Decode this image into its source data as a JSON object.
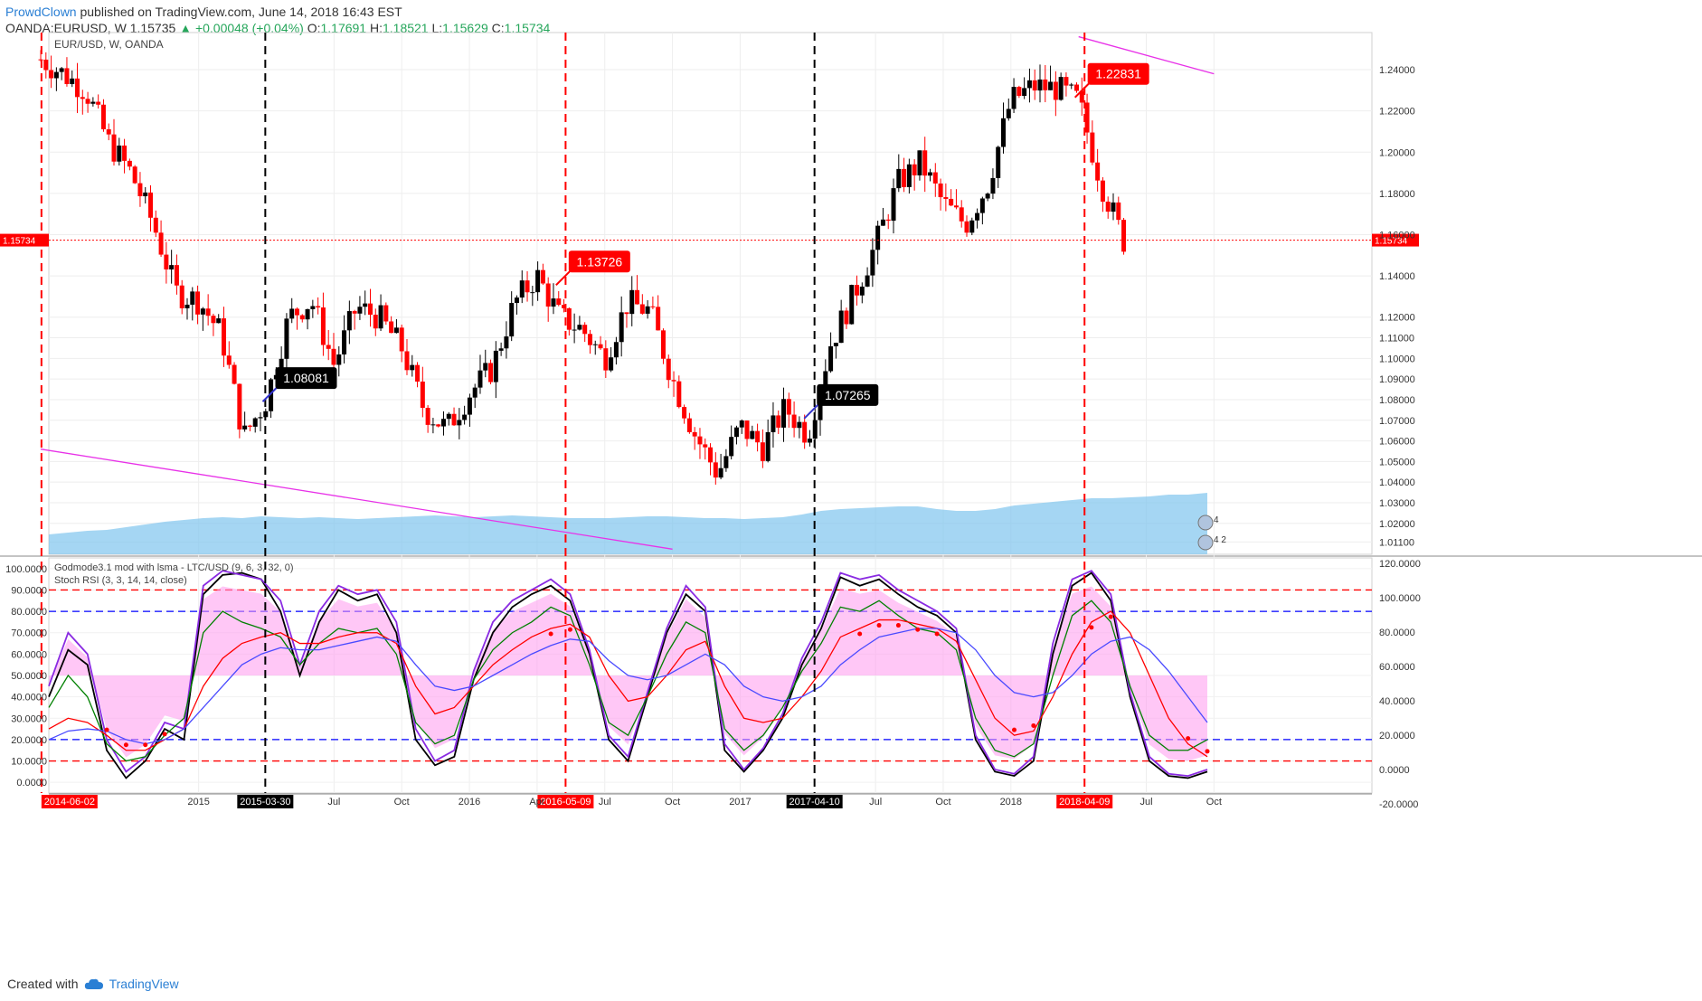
{
  "header": {
    "author": "ProwdClown",
    "published": "published on TradingView.com, June 14, 2018 16:43 EST",
    "symbol": "OANDA:EURUSD, W",
    "price": "1.15735",
    "change": "+0.00048 (+0.04%)",
    "o_label": "O:",
    "o": "1.17691",
    "h_label": "H:",
    "h": "1.18521",
    "l_label": "L:",
    "l": "1.15629",
    "c_label": "C:",
    "c": "1.15734"
  },
  "footer": {
    "created_with": "Created with",
    "brand": "TradingView"
  },
  "colors": {
    "bull": "#000000",
    "bear": "#ff0000",
    "volume_area": "#7fc4ee",
    "trendline": "#e832e8",
    "price_line": "#ff0000",
    "label_red": "#ff0000",
    "label_black": "#000000"
  },
  "chart_data": [
    {
      "type": "candlestick",
      "legend": "EUR/USD, W, OANDA",
      "pane": "price",
      "ylim": [
        1.005,
        1.258
      ],
      "y_ticks": [
        "1.24000",
        "1.22000",
        "1.20000",
        "1.18000",
        "1.16000",
        "1.14000",
        "1.12000",
        "1.11000",
        "1.10000",
        "1.09000",
        "1.08000",
        "1.07000",
        "1.06000",
        "1.05000",
        "1.04000",
        "1.03000",
        "1.02000",
        "1.01100"
      ],
      "last_price": "1.15734",
      "x_tick_labels": [
        {
          "label": "2015",
          "date": "2015-01"
        },
        {
          "label": "Jul",
          "date": "2015-07"
        },
        {
          "label": "Oct",
          "date": "2015-10"
        },
        {
          "label": "2016",
          "date": "2016-01"
        },
        {
          "label": "Apr",
          "date": "2016-04"
        },
        {
          "label": "Jul",
          "date": "2016-07"
        },
        {
          "label": "Oct",
          "date": "2016-10"
        },
        {
          "label": "2017",
          "date": "2017-01"
        },
        {
          "label": "Jul",
          "date": "2017-07"
        },
        {
          "label": "Oct",
          "date": "2017-10"
        },
        {
          "label": "2018",
          "date": "2018-01"
        },
        {
          "label": "Jul",
          "date": "2018-07"
        },
        {
          "label": "Oct",
          "date": "2018-10"
        }
      ],
      "vertical_markers": [
        {
          "date": "2014-06-02",
          "color": "#ff0000",
          "label": "2014-06-02"
        },
        {
          "date": "2015-03-30",
          "color": "#000000",
          "label": "2015-03-30"
        },
        {
          "date": "2016-05-09",
          "color": "#ff0000",
          "label": "2016-05-09"
        },
        {
          "date": "2017-04-10",
          "color": "#000000",
          "label": "2017-04-10"
        },
        {
          "date": "2018-04-09",
          "color": "#ff0000",
          "label": "2018-04-09"
        }
      ],
      "price_labels": [
        {
          "text": "1.08081",
          "date": "2015-04",
          "price": 1.0808,
          "color": "#000000"
        },
        {
          "text": "1.13726",
          "date": "2016-05",
          "price": 1.1373,
          "color": "#ff0000"
        },
        {
          "text": "1.07265",
          "date": "2017-04",
          "price": 1.0726,
          "color": "#000000"
        },
        {
          "text": "1.22831",
          "date": "2018-04",
          "price": 1.2283,
          "color": "#ff0000"
        }
      ],
      "trendlines": [
        {
          "from": {
            "date": "2014-06",
            "price": 1.056
          },
          "to": {
            "date": "2016-10",
            "price": 1.0075
          }
        },
        {
          "from": {
            "date": "2018-04",
            "price": 1.256
          },
          "to": {
            "date": "2018-10",
            "price": 1.238
          }
        }
      ],
      "close_path": [
        [
          "2014-06",
          1.245
        ],
        [
          "2014-07",
          1.238
        ],
        [
          "2014-08",
          1.23
        ],
        [
          "2014-09",
          1.205
        ],
        [
          "2014-10",
          1.19
        ],
        [
          "2014-11",
          1.165
        ],
        [
          "2014-12",
          1.132
        ],
        [
          "2015-01",
          1.128
        ],
        [
          "2015-02",
          1.112
        ],
        [
          "2015-03",
          1.062
        ],
        [
          "2015-04",
          1.08
        ],
        [
          "2015-05",
          1.12
        ],
        [
          "2015-06",
          1.128
        ],
        [
          "2015-07",
          1.097
        ],
        [
          "2015-08",
          1.125
        ],
        [
          "2015-09",
          1.12
        ],
        [
          "2015-10",
          1.105
        ],
        [
          "2015-11",
          1.075
        ],
        [
          "2015-12",
          1.066
        ],
        [
          "2016-01",
          1.083
        ],
        [
          "2016-02",
          1.095
        ],
        [
          "2016-03",
          1.127
        ],
        [
          "2016-04",
          1.14
        ],
        [
          "2016-05",
          1.12
        ],
        [
          "2016-06",
          1.114
        ],
        [
          "2016-07",
          1.1
        ],
        [
          "2016-08",
          1.127
        ],
        [
          "2016-09",
          1.123
        ],
        [
          "2016-10",
          1.09
        ],
        [
          "2016-11",
          1.063
        ],
        [
          "2016-12",
          1.044
        ],
        [
          "2017-01",
          1.067
        ],
        [
          "2017-02",
          1.057
        ],
        [
          "2017-03",
          1.076
        ],
        [
          "2017-04",
          1.063
        ],
        [
          "2017-05",
          1.107
        ],
        [
          "2017-06",
          1.13
        ],
        [
          "2017-07",
          1.155
        ],
        [
          "2017-08",
          1.185
        ],
        [
          "2017-09",
          1.195
        ],
        [
          "2017-10",
          1.175
        ],
        [
          "2017-11",
          1.165
        ],
        [
          "2017-12",
          1.185
        ],
        [
          "2018-01",
          1.225
        ],
        [
          "2018-02",
          1.232
        ],
        [
          "2018-03",
          1.231
        ],
        [
          "2018-04",
          1.225
        ],
        [
          "2018-05",
          1.185
        ],
        [
          "2018-06",
          1.157
        ]
      ]
    },
    {
      "type": "area",
      "pane": "volume",
      "series": [
        {
          "values": [
            22,
            24,
            26,
            27,
            30,
            33,
            36,
            38,
            40,
            41,
            40,
            42,
            41,
            40,
            41,
            40,
            39,
            40,
            41,
            42,
            43,
            42,
            41,
            42,
            43,
            42,
            41,
            40,
            40,
            40,
            41,
            42,
            42,
            41,
            40,
            40,
            39,
            40,
            41,
            44,
            48,
            50,
            51,
            52,
            53,
            53,
            50,
            48,
            48,
            50,
            54,
            56,
            58,
            60,
            62,
            62,
            63,
            64,
            66,
            66,
            68
          ]
        }
      ],
      "note_labels": [
        "4",
        "4 2"
      ]
    },
    {
      "type": "line",
      "legend": [
        "Godmode3.1 mod with lsma - LTC/USD (9, 6, 3, 32, 0)",
        "Stoch RSI (3, 3, 14, 14, close)"
      ],
      "pane": "oscillator",
      "ylim": [
        -5,
        105
      ],
      "y_ticks_left": [
        "100.0000",
        "90.0000",
        "80.0000",
        "70.0000",
        "60.0000",
        "50.0000",
        "40.0000",
        "30.0000",
        "20.0000",
        "10.0000",
        "0.0000"
      ],
      "y_ticks_right": [
        "120.0000",
        "100.0000",
        "80.0000",
        "60.0000",
        "40.0000",
        "20.0000",
        "0.0000",
        "-20.0000"
      ],
      "levels": [
        {
          "y": 90,
          "color": "#ff0000"
        },
        {
          "y": 80,
          "color": "#0000ff"
        },
        {
          "y": 20,
          "color": "#0000ff"
        },
        {
          "y": 10,
          "color": "#ff0000"
        }
      ],
      "series": [
        {
          "color": "#000000",
          "values": [
            40,
            62,
            55,
            15,
            2,
            10,
            25,
            20,
            88,
            97,
            98,
            95,
            80,
            50,
            75,
            90,
            85,
            88,
            70,
            20,
            8,
            12,
            48,
            70,
            82,
            88,
            92,
            85,
            60,
            20,
            10,
            40,
            70,
            88,
            80,
            15,
            5,
            15,
            30,
            55,
            72,
            96,
            92,
            95,
            88,
            82,
            78,
            70,
            20,
            5,
            3,
            10,
            60,
            92,
            98,
            85,
            40,
            10,
            3,
            2,
            5
          ]
        },
        {
          "color": "#8a2be2",
          "values": [
            45,
            70,
            60,
            20,
            5,
            12,
            28,
            25,
            92,
            99,
            97,
            95,
            85,
            55,
            80,
            92,
            88,
            90,
            75,
            25,
            10,
            15,
            52,
            75,
            85,
            90,
            95,
            88,
            62,
            22,
            12,
            42,
            72,
            92,
            82,
            18,
            6,
            16,
            32,
            58,
            75,
            98,
            95,
            97,
            90,
            85,
            80,
            72,
            22,
            6,
            4,
            12,
            65,
            95,
            99,
            88,
            42,
            12,
            4,
            3,
            6
          ]
        },
        {
          "color": "#008000",
          "values": [
            35,
            50,
            40,
            18,
            10,
            12,
            22,
            30,
            70,
            80,
            75,
            72,
            68,
            55,
            65,
            72,
            70,
            72,
            60,
            28,
            18,
            22,
            48,
            62,
            70,
            75,
            82,
            78,
            55,
            28,
            22,
            40,
            60,
            75,
            70,
            25,
            15,
            22,
            35,
            52,
            65,
            82,
            80,
            85,
            78,
            72,
            70,
            62,
            30,
            15,
            12,
            18,
            50,
            78,
            85,
            75,
            45,
            22,
            15,
            15,
            20
          ]
        },
        {
          "color": "#ff0000",
          "values": [
            25,
            30,
            28,
            22,
            15,
            15,
            20,
            25,
            45,
            58,
            65,
            68,
            70,
            65,
            65,
            68,
            70,
            70,
            65,
            45,
            32,
            35,
            45,
            55,
            62,
            68,
            72,
            74,
            68,
            50,
            38,
            40,
            50,
            62,
            66,
            45,
            30,
            28,
            30,
            40,
            52,
            68,
            72,
            76,
            76,
            74,
            72,
            66,
            48,
            30,
            22,
            24,
            40,
            60,
            75,
            80,
            70,
            50,
            30,
            18,
            12
          ]
        },
        {
          "color": "#4a4aff",
          "values": [
            20,
            24,
            25,
            24,
            20,
            18,
            20,
            25,
            35,
            45,
            55,
            60,
            63,
            62,
            62,
            64,
            66,
            68,
            66,
            55,
            45,
            43,
            45,
            50,
            55,
            60,
            64,
            67,
            66,
            57,
            50,
            48,
            50,
            55,
            60,
            55,
            45,
            40,
            38,
            40,
            45,
            55,
            62,
            68,
            70,
            72,
            72,
            70,
            62,
            50,
            42,
            40,
            42,
            50,
            60,
            66,
            68,
            62,
            52,
            40,
            28
          ]
        }
      ]
    }
  ]
}
